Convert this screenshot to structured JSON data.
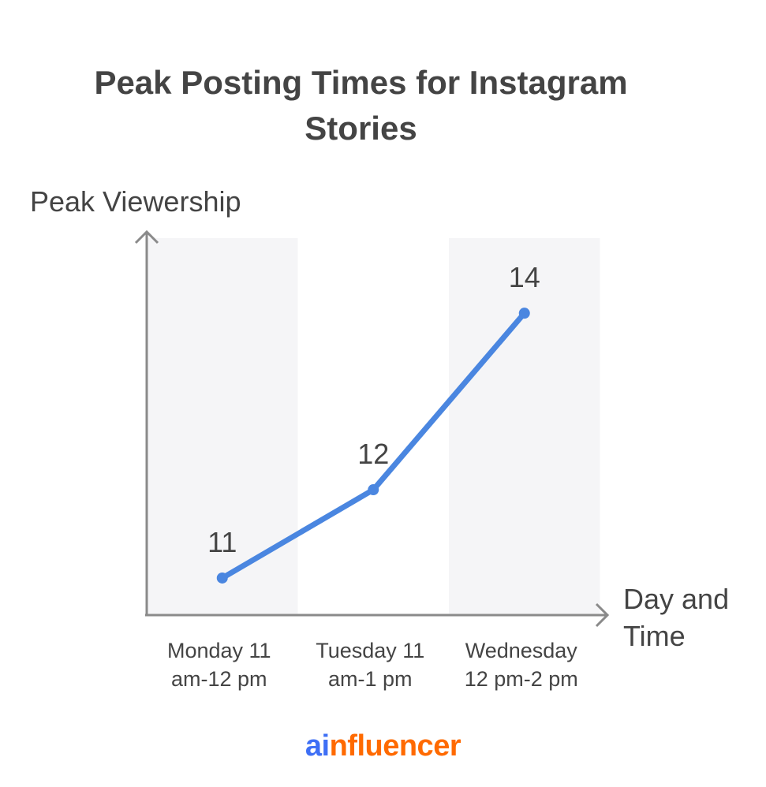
{
  "chart_data": {
    "type": "line",
    "title": "Peak Posting Times for Instagram Stories",
    "ylabel": "Peak Viewership",
    "xlabel": "Day and Time",
    "categories": [
      [
        "Monday 11",
        "am-12 pm"
      ],
      [
        "Tuesday 11",
        "am-1 pm"
      ],
      [
        "Wednesday",
        "12 pm-2 pm"
      ]
    ],
    "values": [
      11,
      12,
      14
    ],
    "data_labels": [
      "11",
      "12",
      "14"
    ],
    "ylim": [
      10.58,
      14.85
    ],
    "grid": false,
    "alternating_bands": true,
    "colors": {
      "line": "#4a86e0",
      "band": "#f5f5f7",
      "axis": "#8a8a8a",
      "text": "#444444"
    }
  },
  "logo": {
    "part1": "ai",
    "part2": "nfluencer",
    "color1": "#3e6ff5",
    "color2": "#ff6a00"
  }
}
